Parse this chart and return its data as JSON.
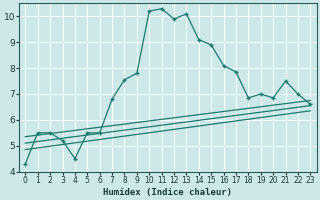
{
  "xlabel": "Humidex (Indice chaleur)",
  "bg_color": "#cce8e8",
  "grid_color": "#ffffff",
  "line_color": "#1a7a6e",
  "border_color": "#cc4444",
  "xlim": [
    -0.5,
    23.5
  ],
  "ylim": [
    4.0,
    10.5
  ],
  "yticks": [
    4,
    5,
    6,
    7,
    8,
    9,
    10
  ],
  "xticks": [
    0,
    1,
    2,
    3,
    4,
    5,
    6,
    7,
    8,
    9,
    10,
    11,
    12,
    13,
    14,
    15,
    16,
    17,
    18,
    19,
    20,
    21,
    22,
    23
  ],
  "main_series_x": [
    0,
    1,
    2,
    3,
    4,
    5,
    6,
    7,
    8,
    9,
    10,
    11,
    12,
    13,
    14,
    15,
    16,
    17,
    18,
    19,
    20,
    21,
    22,
    23
  ],
  "main_series_y": [
    4.3,
    5.5,
    5.5,
    5.2,
    4.5,
    5.5,
    5.5,
    6.8,
    7.55,
    7.8,
    10.2,
    10.3,
    9.9,
    10.1,
    9.1,
    8.9,
    8.1,
    7.85,
    6.85,
    7.0,
    6.85,
    7.5,
    7.0,
    6.6
  ],
  "straight_lines": [
    {
      "x": [
        0,
        23
      ],
      "y": [
        4.85,
        6.35
      ]
    },
    {
      "x": [
        0,
        23
      ],
      "y": [
        5.1,
        6.55
      ]
    },
    {
      "x": [
        0,
        23
      ],
      "y": [
        5.35,
        6.75
      ]
    }
  ]
}
